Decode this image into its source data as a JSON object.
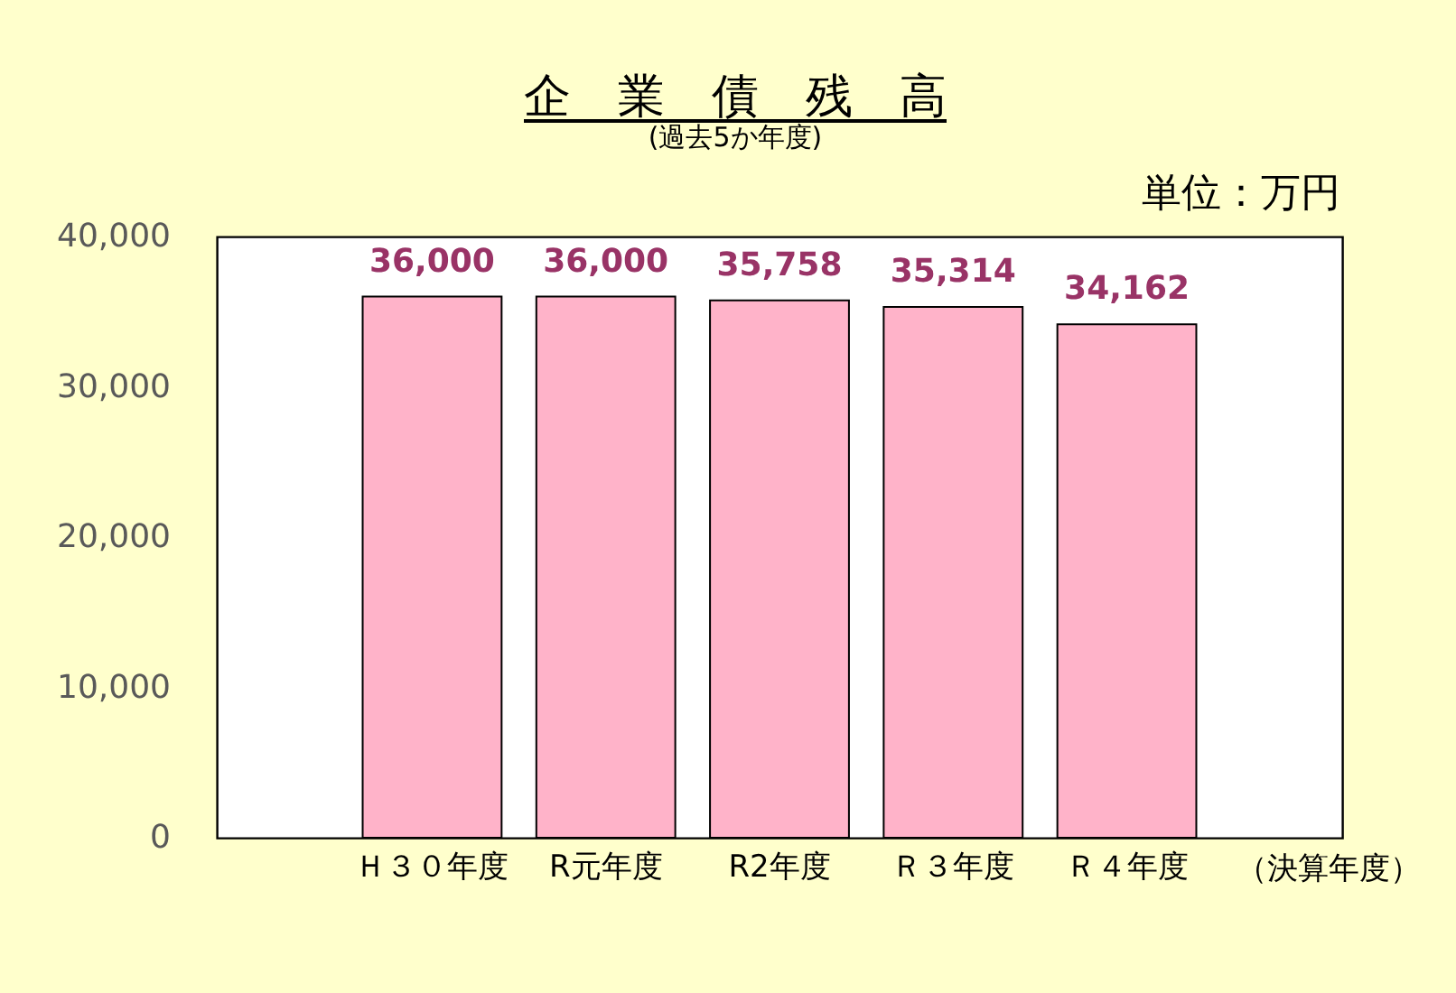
{
  "chart_data": {
    "type": "bar",
    "title": "企　業　債　残　高",
    "subtitle": "(過去5か年度)",
    "xlabel": "（決算年度）",
    "annotations": [
      "単位：万円"
    ],
    "categories": [
      "Ｈ３０年度",
      "R元年度",
      "R2年度",
      "Ｒ３年度",
      "Ｒ４年度"
    ],
    "values": [
      36000,
      36000,
      35758,
      35314,
      34162
    ],
    "value_labels": [
      "36,000",
      "36,000",
      "35,758",
      "35,314",
      "34,162"
    ],
    "color": "#ffb3c9",
    "ylim": [
      0,
      40000
    ],
    "yticks": [
      0,
      {
        "value": 10000,
        "label": "10,000"
      },
      {
        "value": 20000,
        "label": "20,000"
      },
      {
        "value": 30000,
        "label": "30,000"
      },
      {
        "value": 40000,
        "label": "40,000"
      }
    ]
  }
}
